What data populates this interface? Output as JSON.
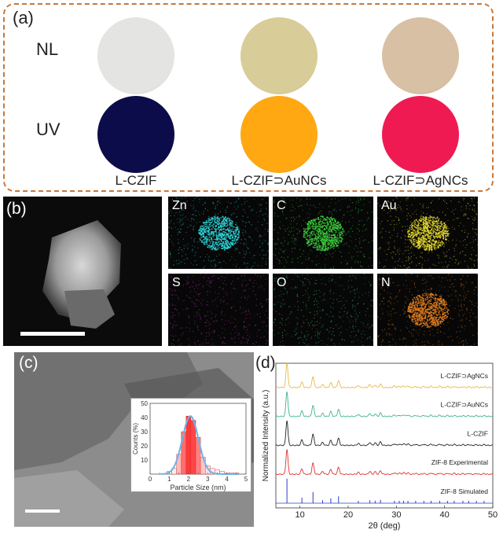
{
  "panel_a": {
    "label": "(a)",
    "row_labels": [
      "NL",
      "UV"
    ],
    "samples": [
      "L-CZIF",
      "L-CZIF⊃AuNCs",
      "L-CZIF⊃AgNCs"
    ],
    "colors": {
      "nl": [
        "#e4e4e2",
        "#d8cc98",
        "#d8c0a4"
      ],
      "uv": [
        "#0c0c4a",
        "#ffa812",
        "#f01a52"
      ]
    }
  },
  "panel_b": {
    "label": "(b)",
    "maps": [
      {
        "element": "Zn",
        "color": "#30d8dc"
      },
      {
        "element": "C",
        "color": "#3cd03c"
      },
      {
        "element": "Au",
        "color": "#e8dc30"
      },
      {
        "element": "S",
        "color": "#c838c0"
      },
      {
        "element": "O",
        "color": "#38c878"
      },
      {
        "element": "N",
        "color": "#e8801e"
      }
    ]
  },
  "panel_c": {
    "label": "(c)",
    "chart_data": {
      "type": "bar",
      "xlabel": "Particle Size (nm)",
      "ylabel": "Counts (%)",
      "xlim": [
        0,
        5
      ],
      "ylim": [
        0,
        50
      ],
      "xticks": [
        "0",
        "0.5",
        "1",
        "1.5",
        "2",
        "2.5",
        "3",
        "3.5",
        "4",
        "4.5",
        "5"
      ],
      "yticks": [
        "10",
        "20",
        "30",
        "40",
        "50"
      ],
      "x": [
        1.0,
        1.25,
        1.5,
        1.75,
        2.0,
        2.25,
        2.5,
        2.75,
        3.0,
        3.25,
        3.5,
        3.75,
        4.0,
        4.25,
        4.5
      ],
      "values": [
        2,
        4,
        14,
        30,
        41,
        38,
        26,
        12,
        6,
        4,
        3,
        2,
        1,
        1,
        1
      ]
    }
  },
  "panel_d": {
    "label": "(d)",
    "chart_data": {
      "type": "line",
      "xlabel": "2θ (deg)",
      "ylabel": "Normalized Intensity (a.u.)",
      "xlim": [
        5,
        50
      ],
      "xticks": [
        "10",
        "20",
        "30",
        "40",
        "50"
      ],
      "series": [
        {
          "name": "L-CZIF⊃AgNCs",
          "color": "#e8b84a"
        },
        {
          "name": "L-CZIF⊃AuNCs",
          "color": "#3cb48c"
        },
        {
          "name": "L-CZIF",
          "color": "#222222"
        },
        {
          "name": "ZIF-8 Experimental",
          "color": "#e03030"
        },
        {
          "name": "ZIF-8 Simulated",
          "color": "#2a3cc8"
        }
      ],
      "peaks": [
        7.3,
        10.4,
        12.7,
        14.7,
        16.4,
        18.0,
        22.1,
        24.5,
        25.6,
        26.7,
        29.6,
        30.6,
        31.5,
        32.4,
        34.0,
        35.7,
        37.2,
        39.0,
        40.6,
        42.0,
        43.8,
        45.0,
        46.6,
        48.2
      ],
      "peak_heights": [
        1.0,
        0.22,
        0.45,
        0.12,
        0.2,
        0.28,
        0.08,
        0.12,
        0.1,
        0.14,
        0.06,
        0.05,
        0.07,
        0.06,
        0.04,
        0.04,
        0.05,
        0.05,
        0.04,
        0.04,
        0.03,
        0.03,
        0.03,
        0.03
      ]
    }
  }
}
